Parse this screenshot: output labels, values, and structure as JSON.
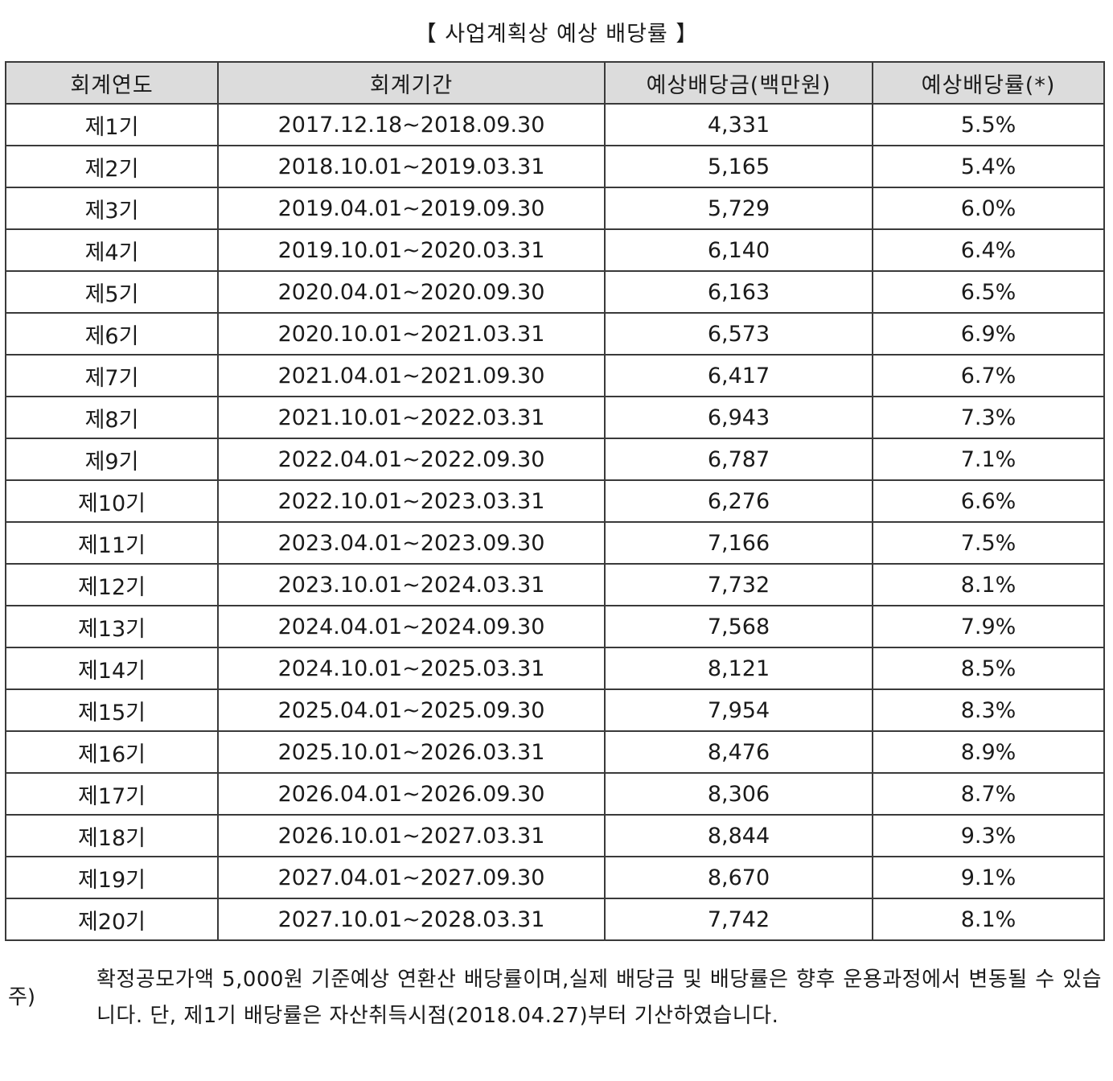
{
  "title": "【 사업계획상 예상 배당률 】",
  "table": {
    "headers": [
      "회계연도",
      "회계기간",
      "예상배당금(백만원)",
      "예상배당률(*)"
    ],
    "rows": [
      [
        "제1기",
        "2017.12.18~2018.09.30",
        "4,331",
        "5.5%"
      ],
      [
        "제2기",
        "2018.10.01~2019.03.31",
        "5,165",
        "5.4%"
      ],
      [
        "제3기",
        "2019.04.01~2019.09.30",
        "5,729",
        "6.0%"
      ],
      [
        "제4기",
        "2019.10.01~2020.03.31",
        "6,140",
        "6.4%"
      ],
      [
        "제5기",
        "2020.04.01~2020.09.30",
        "6,163",
        "6.5%"
      ],
      [
        "제6기",
        "2020.10.01~2021.03.31",
        "6,573",
        "6.9%"
      ],
      [
        "제7기",
        "2021.04.01~2021.09.30",
        "6,417",
        "6.7%"
      ],
      [
        "제8기",
        "2021.10.01~2022.03.31",
        "6,943",
        "7.3%"
      ],
      [
        "제9기",
        "2022.04.01~2022.09.30",
        "6,787",
        "7.1%"
      ],
      [
        "제10기",
        "2022.10.01~2023.03.31",
        "6,276",
        "6.6%"
      ],
      [
        "제11기",
        "2023.04.01~2023.09.30",
        "7,166",
        "7.5%"
      ],
      [
        "제12기",
        "2023.10.01~2024.03.31",
        "7,732",
        "8.1%"
      ],
      [
        "제13기",
        "2024.04.01~2024.09.30",
        "7,568",
        "7.9%"
      ],
      [
        "제14기",
        "2024.10.01~2025.03.31",
        "8,121",
        "8.5%"
      ],
      [
        "제15기",
        "2025.04.01~2025.09.30",
        "7,954",
        "8.3%"
      ],
      [
        "제16기",
        "2025.10.01~2026.03.31",
        "8,476",
        "8.9%"
      ],
      [
        "제17기",
        "2026.04.01~2026.09.30",
        "8,306",
        "8.7%"
      ],
      [
        "제18기",
        "2026.10.01~2027.03.31",
        "8,844",
        "9.3%"
      ],
      [
        "제19기",
        "2027.04.01~2027.09.30",
        "8,670",
        "9.1%"
      ],
      [
        "제20기",
        "2027.10.01~2028.03.31",
        "7,742",
        "8.1%"
      ]
    ]
  },
  "note": {
    "label": "주)",
    "text": "확정공모가액 5,000원 기준예상 연환산 배당률이며,실제 배당금 및 배당률은 향후 운용과정에서 변동될 수 있습니다. 단, 제1기 배당률은 자산취득시점(2018.04.27)부터 기산하였습니다."
  },
  "colors": {
    "header_bg": "#dcdcdc",
    "border": "#3a3a3a",
    "text": "#1a1a1a"
  }
}
